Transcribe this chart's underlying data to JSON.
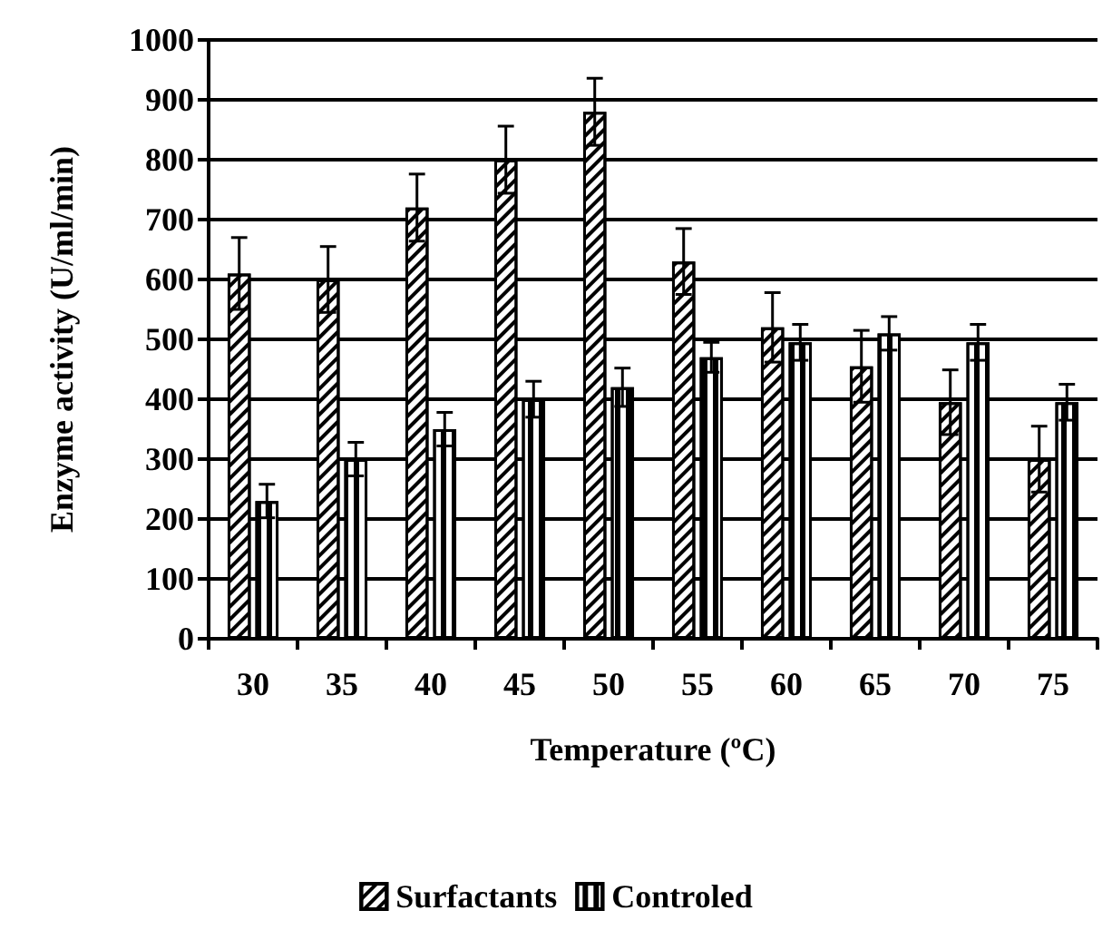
{
  "chart_data": {
    "type": "bar",
    "xlabel": "Temperature (ºC)",
    "ylabel": "Enzyme activity (U/ml/min)",
    "categories": [
      "30",
      "35",
      "40",
      "45",
      "50",
      "55",
      "60",
      "65",
      "70",
      "75"
    ],
    "series": [
      {
        "name": "Surfactants",
        "color": "#ffffff",
        "values": [
          610,
          600,
          720,
          800,
          880,
          630,
          520,
          455,
          395,
          300
        ],
        "errors": [
          60,
          55,
          56,
          56,
          56,
          55,
          58,
          60,
          54,
          55
        ]
      },
      {
        "name": "Controled",
        "color": "#ffffff",
        "values": [
          230,
          300,
          350,
          400,
          420,
          470,
          495,
          510,
          495,
          395
        ],
        "errors": [
          28,
          28,
          28,
          30,
          32,
          25,
          30,
          28,
          30,
          30
        ]
      }
    ],
    "ylim": [
      0,
      1000
    ],
    "yticks": [
      0,
      100,
      200,
      300,
      400,
      500,
      600,
      700,
      800,
      900,
      1000
    ],
    "grid": "y",
    "legend": "bottom"
  }
}
